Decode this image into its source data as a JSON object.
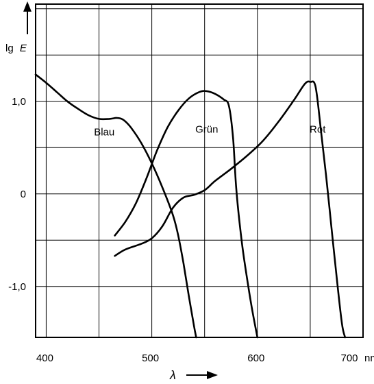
{
  "chart_data": {
    "type": "line",
    "ylabel_prefix": "lg",
    "ylabel_var": "E",
    "xlabel": "λ",
    "x_unit": "nm",
    "xlim": [
      390,
      700
    ],
    "ylim": [
      -1.55,
      2.05
    ],
    "x_ticks": [
      {
        "value": 400,
        "label": "400"
      },
      {
        "value": 500,
        "label": "500"
      },
      {
        "value": 600,
        "label": "600"
      },
      {
        "value": 700,
        "label": "700"
      }
    ],
    "y_ticks": [
      {
        "value": 1.0,
        "label": "1,0"
      },
      {
        "value": 0.0,
        "label": "0"
      },
      {
        "value": -1.0,
        "label": "-1,0"
      }
    ],
    "x_grid": [
      400,
      450,
      500,
      550,
      600,
      650,
      700
    ],
    "y_grid": [
      2.0,
      1.5,
      1.0,
      0.5,
      0.0,
      -0.5,
      -1.0
    ],
    "grid": true,
    "series": [
      {
        "name": "Blau",
        "label_at": [
          455,
          0.63
        ],
        "points": [
          [
            390,
            1.29
          ],
          [
            400,
            1.2
          ],
          [
            410,
            1.1
          ],
          [
            420,
            1.0
          ],
          [
            430,
            0.92
          ],
          [
            440,
            0.85
          ],
          [
            450,
            0.81
          ],
          [
            460,
            0.81
          ],
          [
            467,
            0.82
          ],
          [
            473,
            0.8
          ],
          [
            480,
            0.72
          ],
          [
            490,
            0.55
          ],
          [
            500,
            0.33
          ],
          [
            510,
            0.07
          ],
          [
            520,
            -0.23
          ],
          [
            525,
            -0.45
          ],
          [
            530,
            -0.75
          ],
          [
            535,
            -1.1
          ],
          [
            540,
            -1.43
          ],
          [
            542,
            -1.55
          ]
        ]
      },
      {
        "name": "Grün",
        "label_at": [
          552,
          0.66
        ],
        "points": [
          [
            465,
            -0.45
          ],
          [
            475,
            -0.3
          ],
          [
            485,
            -0.1
          ],
          [
            495,
            0.17
          ],
          [
            505,
            0.47
          ],
          [
            515,
            0.72
          ],
          [
            525,
            0.9
          ],
          [
            535,
            1.03
          ],
          [
            545,
            1.1
          ],
          [
            552,
            1.11
          ],
          [
            560,
            1.08
          ],
          [
            568,
            1.02
          ],
          [
            573,
            0.95
          ],
          [
            577,
            0.6
          ],
          [
            580,
            0.05
          ],
          [
            585,
            -0.5
          ],
          [
            590,
            -0.9
          ],
          [
            595,
            -1.25
          ],
          [
            600,
            -1.55
          ]
        ]
      },
      {
        "name": "Rot",
        "label_at": [
          657,
          0.66
        ],
        "points": [
          [
            465,
            -0.67
          ],
          [
            475,
            -0.6
          ],
          [
            490,
            -0.54
          ],
          [
            500,
            -0.48
          ],
          [
            510,
            -0.35
          ],
          [
            520,
            -0.15
          ],
          [
            530,
            -0.04
          ],
          [
            540,
            -0.01
          ],
          [
            550,
            0.04
          ],
          [
            560,
            0.14
          ],
          [
            575,
            0.27
          ],
          [
            590,
            0.41
          ],
          [
            605,
            0.57
          ],
          [
            620,
            0.78
          ],
          [
            635,
            1.02
          ],
          [
            645,
            1.19
          ],
          [
            650,
            1.21
          ],
          [
            655,
            1.16
          ],
          [
            660,
            0.7
          ],
          [
            665,
            0.2
          ],
          [
            670,
            -0.35
          ],
          [
            675,
            -0.9
          ],
          [
            680,
            -1.4
          ],
          [
            683,
            -1.55
          ]
        ]
      }
    ]
  }
}
